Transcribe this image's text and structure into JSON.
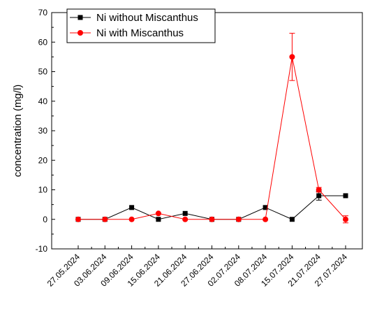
{
  "chart_data": {
    "type": "line",
    "title": "",
    "xlabel": "",
    "ylabel": "concentration (mg/l)",
    "ylim": [
      -10,
      70
    ],
    "yticks": [
      -10,
      0,
      10,
      20,
      30,
      40,
      50,
      60,
      70
    ],
    "categories": [
      "27.05.2024",
      "03.06.2024",
      "09.06.2024",
      "15.06.2024",
      "21.06.2024",
      "27.06.2024",
      "02.07.2024",
      "08.07.2024",
      "15.07.2024",
      "21.07.2024",
      "27.07.2024"
    ],
    "series": [
      {
        "name": "Ni without Miscanthus",
        "color": "#000000",
        "marker": "square",
        "values": [
          0,
          0,
          4,
          0,
          2,
          0,
          0,
          4,
          0,
          8,
          8
        ],
        "error": [
          0,
          0,
          0,
          0,
          0,
          0,
          0,
          0,
          0,
          1.5,
          0
        ]
      },
      {
        "name": "Ni with Miscanthus",
        "color": "#ff0000",
        "marker": "circle",
        "values": [
          0,
          0,
          0,
          2,
          0,
          0,
          0,
          0,
          55,
          10,
          0
        ],
        "error": [
          0,
          0,
          0,
          0,
          0,
          0,
          0,
          0,
          8,
          0.8,
          1.2
        ]
      }
    ],
    "grid": false,
    "legend": "top-left"
  }
}
